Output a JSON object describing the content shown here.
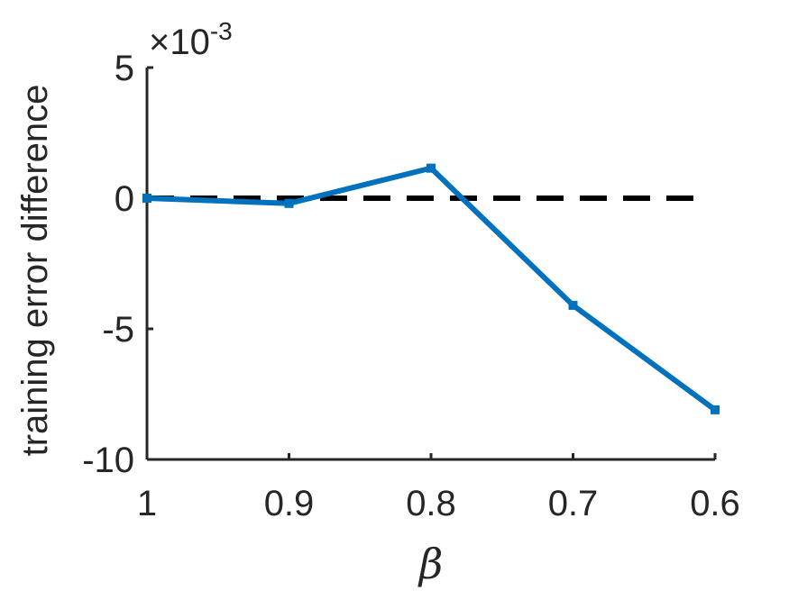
{
  "chart_data": {
    "type": "line",
    "x_label": "β",
    "y_label": "training error difference",
    "y_multiplier": {
      "base": "×10",
      "exponent": "-3"
    },
    "x": [
      1,
      0.9,
      0.8,
      0.7,
      0.6
    ],
    "series": [
      {
        "color": "#0072bd",
        "values": [
          0,
          -0.2,
          1.15,
          -4.1,
          -8.1
        ]
      }
    ],
    "reference_line": {
      "value": 0,
      "color": "#000000",
      "dashed": true
    },
    "xlim": [
      1,
      0.6
    ],
    "xticks": [
      1,
      0.9,
      0.8,
      0.7,
      0.6
    ],
    "ylim": [
      -10,
      5
    ],
    "yticks": [
      5,
      0,
      -5,
      -10
    ],
    "grid": false
  }
}
